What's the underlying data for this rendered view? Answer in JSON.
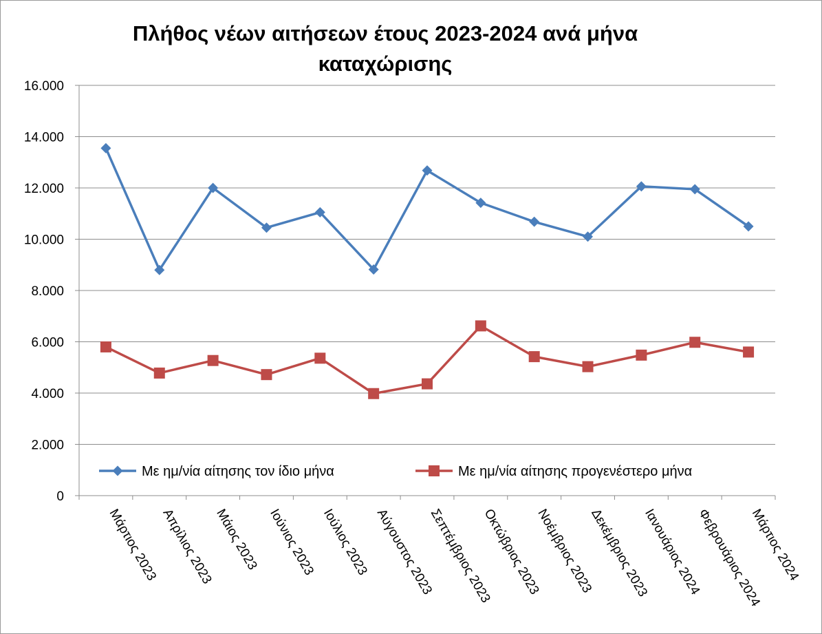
{
  "chart_data": {
    "type": "line",
    "title_line1": "Πλήθος νέων αιτήσεων έτους 2023-2024 ανά μήνα",
    "title_line2": "καταχώρισης",
    "categories": [
      "Μάρτιος 2023",
      "Απρίλιος 2023",
      "Μάιος 2023",
      "Ιούνιος 2023",
      "Ιούλιος 2023",
      "Αύγουστος 2023",
      "Σεπτέμβριος 2023",
      "Οκτώβριος 2023",
      "Νοέμβριος 2023",
      "Δεκέμβριος 2023",
      "Ιανουάριος 2024",
      "Φεβρουάριος 2024",
      "Μάρτιος 2024"
    ],
    "ylim": [
      0,
      16000
    ],
    "yticks": [
      0,
      2000,
      4000,
      6000,
      8000,
      10000,
      12000,
      14000,
      16000
    ],
    "ytick_labels": [
      "0",
      "2.000",
      "4.000",
      "6.000",
      "8.000",
      "10.000",
      "12.000",
      "14.000",
      "16.000"
    ],
    "grid": true,
    "legend_position": "bottom, inside plot",
    "series": [
      {
        "name": "Με ημ/νία αίτησης τον ίδιο μήνα",
        "color": "#4a7ebb",
        "marker": "diamond",
        "values": [
          13550,
          8800,
          12000,
          10450,
          11050,
          8820,
          12680,
          11420,
          10680,
          10100,
          12060,
          11950,
          10500
        ]
      },
      {
        "name": "Με ημ/νία αίτησης προγενέστερο μήνα",
        "color": "#be4b48",
        "marker": "square",
        "values": [
          5800,
          4780,
          5270,
          4720,
          5360,
          3980,
          4360,
          6620,
          5420,
          5030,
          5480,
          5980,
          5600
        ]
      }
    ]
  }
}
